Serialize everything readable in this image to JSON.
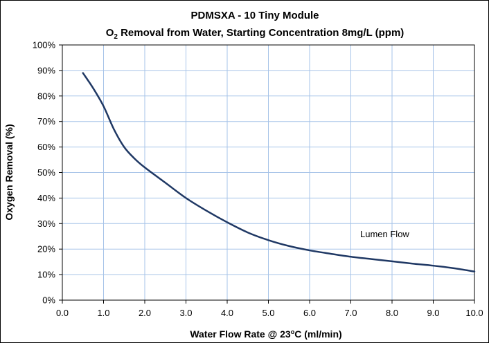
{
  "chart_data": {
    "type": "line",
    "title_line1": "PDMSXA - 10 Tiny Module",
    "title_line2_prefix": "O",
    "title_line2_sub": "2",
    "title_line2_rest": " Removal from Water, Starting Concentration 8mg/L (ppm)",
    "xlabel_prefix": "Water Flow Rate @ 23",
    "xlabel_sup": "o",
    "xlabel_rest": "C (ml/min)",
    "ylabel": "Oxygen Removal (%)",
    "xlim": [
      0,
      10
    ],
    "ylim": [
      0,
      100
    ],
    "x_ticks": [
      "0.0",
      "1.0",
      "2.0",
      "3.0",
      "4.0",
      "5.0",
      "6.0",
      "7.0",
      "8.0",
      "9.0",
      "10.0"
    ],
    "y_ticks": [
      "0%",
      "10%",
      "20%",
      "30%",
      "40%",
      "50%",
      "60%",
      "70%",
      "80%",
      "90%",
      "100%"
    ],
    "grid": true,
    "annotation": "Lumen Flow",
    "line_color": "#1f3864",
    "grid_color": "#a6c3e8",
    "series": [
      {
        "x": [
          0.5,
          0.75,
          1.0,
          1.25,
          1.5,
          1.75,
          2.0,
          2.5,
          3.0,
          3.5,
          4.0,
          4.5,
          5.0,
          5.5,
          6.0,
          6.5,
          7.0,
          7.5,
          8.0,
          8.5,
          9.0,
          9.5,
          10.0
        ],
        "y": [
          89,
          83,
          76,
          67,
          60,
          55.5,
          52,
          46,
          40,
          35,
          30.5,
          26.5,
          23.5,
          21.2,
          19.5,
          18.2,
          17.0,
          16.1,
          15.2,
          14.3,
          13.5,
          12.5,
          11.2
        ]
      }
    ]
  }
}
